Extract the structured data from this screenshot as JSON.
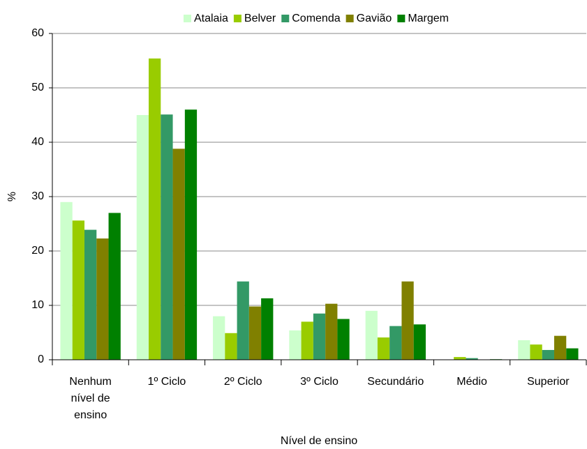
{
  "chart_data": {
    "type": "bar",
    "x_label": "Nível de ensino",
    "y_label": "%",
    "categories": [
      "Nenhum nível de ensino",
      "1º Ciclo",
      "2º Ciclo",
      "3º Ciclo",
      "Secundário",
      "Médio",
      "Superior"
    ],
    "series": [
      {
        "name": "Atalaia",
        "color": "#ccffcc",
        "values": [
          29,
          45,
          8,
          5.4,
          9,
          0,
          3.6
        ]
      },
      {
        "name": "Belver",
        "color": "#99cc00",
        "values": [
          25.6,
          55.4,
          4.9,
          7,
          4.1,
          0.5,
          2.8
        ]
      },
      {
        "name": "Comenda",
        "color": "#339966",
        "values": [
          23.9,
          45.1,
          14.4,
          8.5,
          6.2,
          0.3,
          1.8
        ]
      },
      {
        "name": "Gavião",
        "color": "#808000",
        "values": [
          22.3,
          38.8,
          9.8,
          10.3,
          14.4,
          0,
          4.4
        ]
      },
      {
        "name": "Margem",
        "color": "#008000",
        "values": [
          27,
          46,
          11.3,
          7.5,
          6.5,
          0.1,
          2.1
        ]
      }
    ],
    "ylim": [
      0,
      60
    ],
    "yticks": [
      0,
      10,
      20,
      30,
      40,
      50,
      60
    ],
    "grid": true,
    "legend": "top"
  }
}
